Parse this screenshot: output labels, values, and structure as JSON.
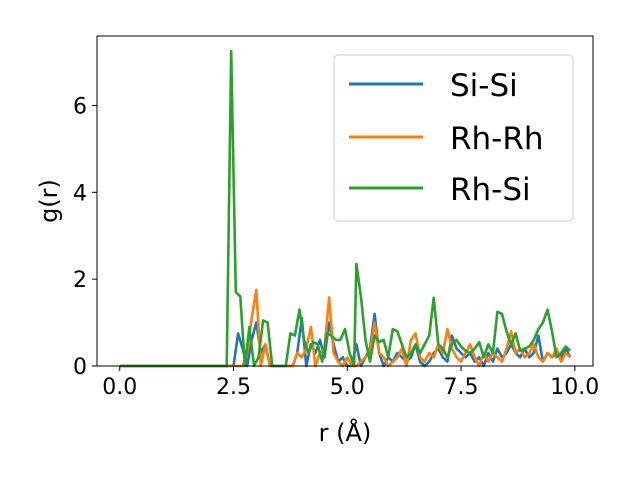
{
  "chart_data": {
    "type": "line",
    "title": "",
    "xlabel": "r (Å)",
    "ylabel": "g(r)",
    "xlim": [
      -0.5,
      10.4
    ],
    "ylim": [
      0,
      7.6
    ],
    "xticks": [
      0.0,
      2.5,
      5.0,
      7.5,
      10.0
    ],
    "xtick_labels": [
      "0.0",
      "2.5",
      "5.0",
      "7.5",
      "10.0"
    ],
    "yticks": [
      0,
      2,
      4,
      6
    ],
    "ytick_labels": [
      "0",
      "2",
      "4",
      "6"
    ],
    "grid": false,
    "legend_position": "upper-right",
    "series": [
      {
        "name": "Si-Si",
        "color": "#1f77b4",
        "points": [
          [
            0.0,
            0
          ],
          [
            2.3,
            0
          ],
          [
            2.5,
            0
          ],
          [
            2.6,
            0.75
          ],
          [
            2.7,
            0.4
          ],
          [
            2.8,
            0
          ],
          [
            2.9,
            0.6
          ],
          [
            3.0,
            1.0
          ],
          [
            3.1,
            0.3
          ],
          [
            3.2,
            0.5
          ],
          [
            3.3,
            0
          ],
          [
            3.5,
            0
          ],
          [
            3.7,
            0
          ],
          [
            3.8,
            0
          ],
          [
            3.9,
            0.3
          ],
          [
            4.0,
            1.1
          ],
          [
            4.1,
            0
          ],
          [
            4.2,
            0.5
          ],
          [
            4.3,
            0.3
          ],
          [
            4.4,
            0.6
          ],
          [
            4.5,
            0.2
          ],
          [
            4.6,
            1.0
          ],
          [
            4.7,
            0.5
          ],
          [
            4.8,
            0.1
          ],
          [
            4.9,
            0.2
          ],
          [
            5.0,
            0
          ],
          [
            5.1,
            0
          ],
          [
            5.2,
            0.5
          ],
          [
            5.3,
            0
          ],
          [
            5.4,
            0.2
          ],
          [
            5.5,
            0.4
          ],
          [
            5.6,
            1.2
          ],
          [
            5.7,
            0.3
          ],
          [
            5.8,
            0
          ],
          [
            5.9,
            0.2
          ],
          [
            6.0,
            0.1
          ],
          [
            6.1,
            0.3
          ],
          [
            6.2,
            0.2
          ],
          [
            6.3,
            0.1
          ],
          [
            6.4,
            0.2
          ],
          [
            6.5,
            0.5
          ],
          [
            6.6,
            0.1
          ],
          [
            6.7,
            0
          ],
          [
            6.8,
            0.1
          ],
          [
            6.9,
            0.3
          ],
          [
            7.0,
            0.4
          ],
          [
            7.1,
            0.2
          ],
          [
            7.2,
            0.1
          ],
          [
            7.3,
            0.7
          ],
          [
            7.4,
            0.4
          ],
          [
            7.5,
            0.3
          ],
          [
            7.6,
            0.2
          ],
          [
            7.7,
            0.3
          ],
          [
            7.8,
            0.1
          ],
          [
            7.9,
            0.2
          ],
          [
            8.0,
            0
          ],
          [
            8.1,
            0.3
          ],
          [
            8.2,
            0.1
          ],
          [
            8.3,
            0.4
          ],
          [
            8.4,
            0.2
          ],
          [
            8.5,
            0.3
          ],
          [
            8.6,
            0.5
          ],
          [
            8.7,
            0.3
          ],
          [
            8.8,
            0.2
          ],
          [
            8.9,
            0.4
          ],
          [
            9.0,
            0.2
          ],
          [
            9.1,
            0.3
          ],
          [
            9.2,
            0.7
          ],
          [
            9.3,
            0.1
          ],
          [
            9.4,
            0.3
          ],
          [
            9.5,
            0.2
          ],
          [
            9.6,
            0.3
          ],
          [
            9.7,
            0.2
          ],
          [
            9.8,
            0.4
          ],
          [
            9.9,
            0.2
          ]
        ]
      },
      {
        "name": "Rh-Rh",
        "color": "#ff7f0e",
        "points": [
          [
            0.0,
            0
          ],
          [
            2.3,
            0
          ],
          [
            2.7,
            0
          ],
          [
            2.8,
            0.3
          ],
          [
            2.9,
            1.1
          ],
          [
            3.0,
            1.75
          ],
          [
            3.1,
            0
          ],
          [
            3.2,
            0.5
          ],
          [
            3.3,
            0
          ],
          [
            3.5,
            0
          ],
          [
            3.8,
            0
          ],
          [
            3.9,
            0.3
          ],
          [
            4.0,
            0.2
          ],
          [
            4.1,
            0.4
          ],
          [
            4.2,
            0.9
          ],
          [
            4.3,
            0
          ],
          [
            4.4,
            0.3
          ],
          [
            4.5,
            0.4
          ],
          [
            4.6,
            1.58
          ],
          [
            4.7,
            0.3
          ],
          [
            4.8,
            0.1
          ],
          [
            4.9,
            0
          ],
          [
            5.0,
            0.2
          ],
          [
            5.1,
            0
          ],
          [
            5.2,
            0
          ],
          [
            5.3,
            0.1
          ],
          [
            5.4,
            0.2
          ],
          [
            5.5,
            0.3
          ],
          [
            5.6,
            1.0
          ],
          [
            5.7,
            0.3
          ],
          [
            5.8,
            0.2
          ],
          [
            5.9,
            0
          ],
          [
            6.0,
            0.1
          ],
          [
            6.1,
            0.2
          ],
          [
            6.2,
            0.4
          ],
          [
            6.3,
            0
          ],
          [
            6.4,
            0.6
          ],
          [
            6.5,
            0.75
          ],
          [
            6.6,
            0.2
          ],
          [
            6.7,
            0.1
          ],
          [
            6.8,
            0.3
          ],
          [
            6.9,
            0.2
          ],
          [
            7.0,
            0.5
          ],
          [
            7.1,
            0.3
          ],
          [
            7.2,
            0.85
          ],
          [
            7.3,
            0.4
          ],
          [
            7.4,
            0.2
          ],
          [
            7.5,
            0.1
          ],
          [
            7.6,
            0.3
          ],
          [
            7.7,
            0.5
          ],
          [
            7.8,
            0.2
          ],
          [
            7.9,
            0
          ],
          [
            8.0,
            0.3
          ],
          [
            8.1,
            0.1
          ],
          [
            8.2,
            0.3
          ],
          [
            8.3,
            0.2
          ],
          [
            8.4,
            0.1
          ],
          [
            8.5,
            0.4
          ],
          [
            8.6,
            0.8
          ],
          [
            8.7,
            0.3
          ],
          [
            8.8,
            0.4
          ],
          [
            8.9,
            0.2
          ],
          [
            9.0,
            0.3
          ],
          [
            9.1,
            0.5
          ],
          [
            9.2,
            0.2
          ],
          [
            9.3,
            0.1
          ],
          [
            9.4,
            0.3
          ],
          [
            9.5,
            0.2
          ],
          [
            9.6,
            0.4
          ],
          [
            9.7,
            0.1
          ],
          [
            9.8,
            0.3
          ],
          [
            9.9,
            0.2
          ]
        ]
      },
      {
        "name": "Rh-Si",
        "color": "#2ca02c",
        "points": [
          [
            0.0,
            0
          ],
          [
            2.3,
            0
          ],
          [
            2.35,
            0
          ],
          [
            2.45,
            7.25
          ],
          [
            2.55,
            1.7
          ],
          [
            2.65,
            1.6
          ],
          [
            2.75,
            0
          ],
          [
            2.85,
            0.9
          ],
          [
            2.95,
            0
          ],
          [
            3.05,
            0.2
          ],
          [
            3.15,
            1.05
          ],
          [
            3.25,
            1.0
          ],
          [
            3.35,
            0
          ],
          [
            3.5,
            0
          ],
          [
            3.65,
            0
          ],
          [
            3.75,
            0.75
          ],
          [
            3.85,
            0.7
          ],
          [
            3.95,
            1.3
          ],
          [
            4.05,
            0.6
          ],
          [
            4.15,
            0.3
          ],
          [
            4.25,
            0.55
          ],
          [
            4.35,
            0.5
          ],
          [
            4.45,
            0.1
          ],
          [
            4.55,
            0.75
          ],
          [
            4.65,
            0.7
          ],
          [
            4.75,
            0.6
          ],
          [
            4.85,
            0.6
          ],
          [
            4.95,
            0.85
          ],
          [
            5.05,
            0.3
          ],
          [
            5.15,
            0
          ],
          [
            5.2,
            2.35
          ],
          [
            5.3,
            1.6
          ],
          [
            5.4,
            0.6
          ],
          [
            5.5,
            0.1
          ],
          [
            5.6,
            0.7
          ],
          [
            5.7,
            0.55
          ],
          [
            5.8,
            0.6
          ],
          [
            5.9,
            0.2
          ],
          [
            6.0,
            0.85
          ],
          [
            6.1,
            0.8
          ],
          [
            6.2,
            0.5
          ],
          [
            6.3,
            0.2
          ],
          [
            6.4,
            0.3
          ],
          [
            6.5,
            0.5
          ],
          [
            6.6,
            0.3
          ],
          [
            6.7,
            0.5
          ],
          [
            6.8,
            0.7
          ],
          [
            6.9,
            1.57
          ],
          [
            7.0,
            0.5
          ],
          [
            7.1,
            0.4
          ],
          [
            7.2,
            0.2
          ],
          [
            7.3,
            0.5
          ],
          [
            7.4,
            0.6
          ],
          [
            7.5,
            0.45
          ],
          [
            7.6,
            0.35
          ],
          [
            7.7,
            0.3
          ],
          [
            7.8,
            0.4
          ],
          [
            7.9,
            0.55
          ],
          [
            8.0,
            0.2
          ],
          [
            8.1,
            0.5
          ],
          [
            8.2,
            0.3
          ],
          [
            8.3,
            1.25
          ],
          [
            8.4,
            1.2
          ],
          [
            8.5,
            0.8
          ],
          [
            8.6,
            0.5
          ],
          [
            8.7,
            0.75
          ],
          [
            8.8,
            0.35
          ],
          [
            8.9,
            0.4
          ],
          [
            9.0,
            0.45
          ],
          [
            9.1,
            0.6
          ],
          [
            9.2,
            0.85
          ],
          [
            9.3,
            1.0
          ],
          [
            9.4,
            1.3
          ],
          [
            9.5,
            0.8
          ],
          [
            9.6,
            0.2
          ],
          [
            9.7,
            0.3
          ],
          [
            9.8,
            0.45
          ],
          [
            9.9,
            0.35
          ]
        ]
      }
    ]
  }
}
